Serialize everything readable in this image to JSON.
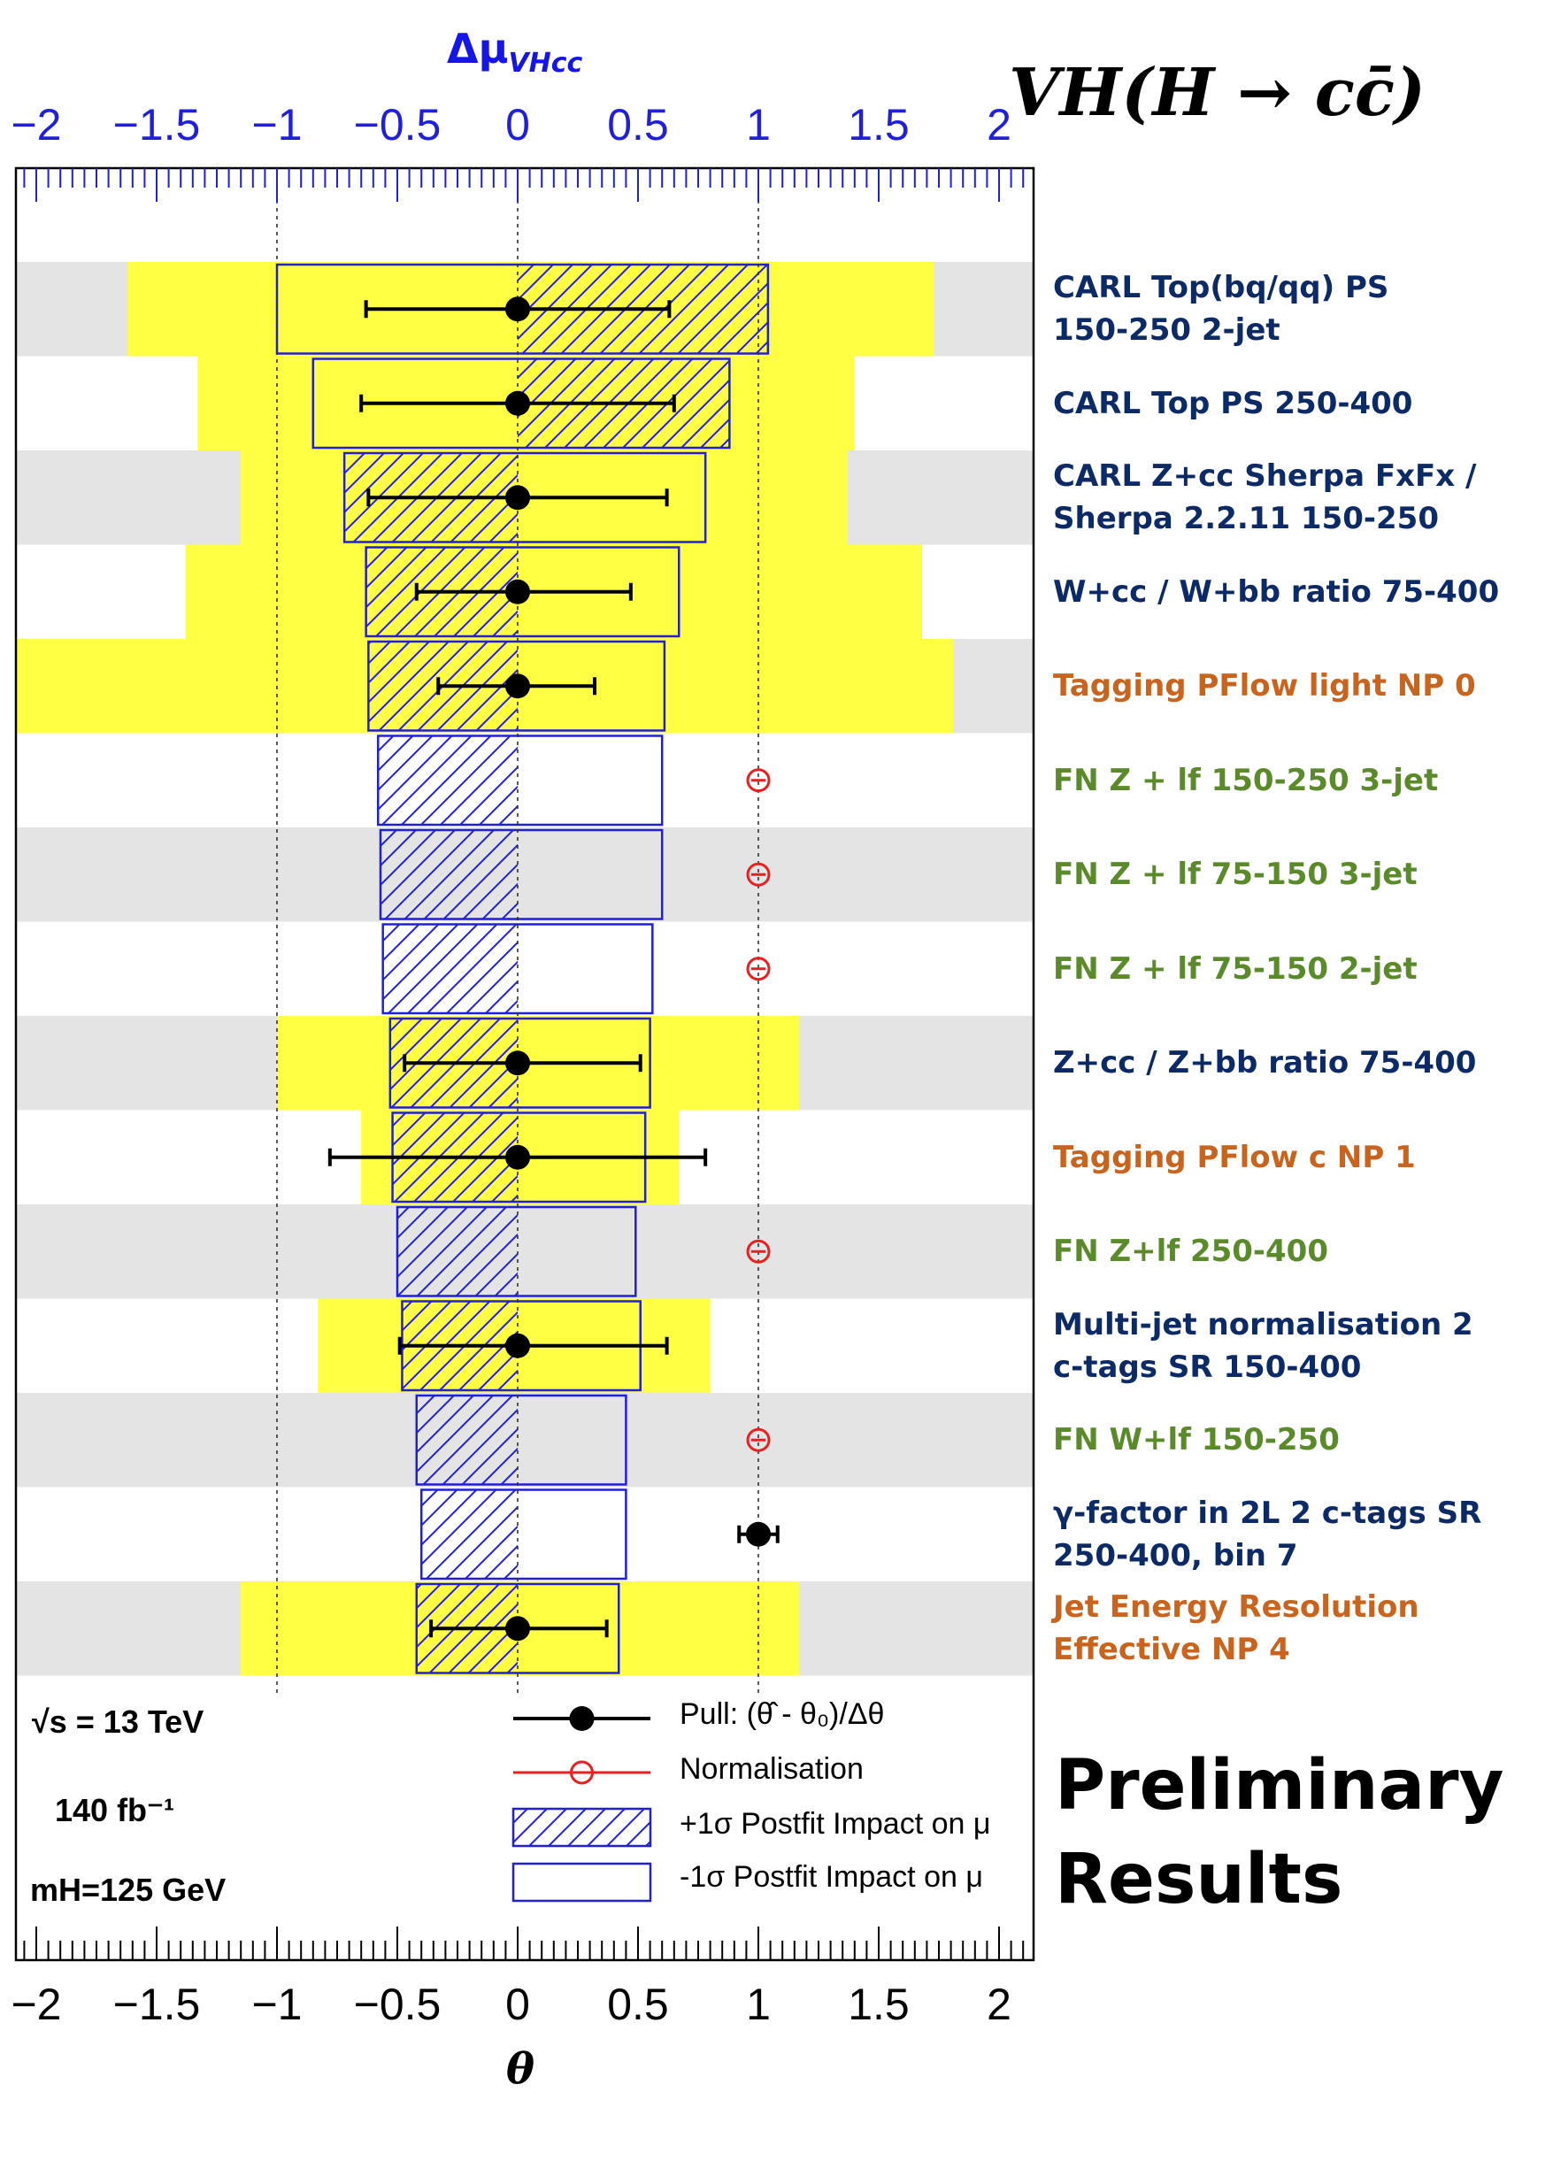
{
  "chart_data": {
    "type": "ranking",
    "title": "VH(H → cc̄)",
    "top_axis": {
      "label": "Δμ_VHcc",
      "range": [
        -2.2,
        2.2
      ],
      "tick_labels": [
        "−2",
        "−1.5",
        "−1",
        "−0.5",
        "0",
        "0.5",
        "1",
        "1.5",
        "2"
      ],
      "color": "#1515e8"
    },
    "bottom_axis": {
      "label": "θ",
      "range": [
        -2.2,
        2.2
      ],
      "tick_labels": [
        "−2",
        "−1.5",
        "−1",
        "−0.5",
        "0",
        "0.5",
        "1",
        "1.5",
        "2"
      ]
    },
    "reference_lines": [
      -1,
      0,
      1
    ],
    "parameters": [
      {
        "label": "CARL Top(bq/qq) PS\n150-250 2-jet",
        "color": "#0c2a66",
        "prefit_band": [
          -1.62,
          1.73
        ],
        "impact_plus": 1.04,
        "impact_minus": -1.0,
        "pull": 0.0,
        "pull_err": [
          -0.63,
          0.63
        ],
        "normalisation": false
      },
      {
        "label": "CARL Top PS 250-400",
        "color": "#0c2a66",
        "prefit_band": [
          -1.33,
          1.4
        ],
        "impact_plus": 0.88,
        "impact_minus": -0.85,
        "pull": 0.0,
        "pull_err": [
          -0.65,
          0.65
        ],
        "normalisation": false
      },
      {
        "label": "CARL Z+cc Sherpa FxFx /\nSherpa 2.2.11 150-250",
        "color": "#0c2a66",
        "prefit_band": [
          -1.15,
          1.37
        ],
        "impact_plus": -0.72,
        "impact_minus": 0.78,
        "pull": 0.0,
        "pull_err": [
          -0.62,
          0.62
        ],
        "normalisation": false
      },
      {
        "label": "W+cc / W+bb ratio 75-400",
        "color": "#0c2a66",
        "prefit_band": [
          -1.38,
          1.68
        ],
        "impact_plus": -0.63,
        "impact_minus": 0.67,
        "pull": 0.0,
        "pull_err": [
          -0.42,
          0.47
        ],
        "normalisation": false
      },
      {
        "label": "Tagging PFlow light NP 0",
        "color": "#c8641e",
        "prefit_band": [
          -2.2,
          1.81
        ],
        "impact_plus": -0.62,
        "impact_minus": 0.61,
        "pull": 0.0,
        "pull_err": [
          -0.33,
          0.32
        ],
        "normalisation": false
      },
      {
        "label": "FN Z + lf 150-250 3-jet",
        "color": "#5a8a2a",
        "prefit_band": null,
        "impact_plus": -0.58,
        "impact_minus": 0.6,
        "pull": 1.0,
        "pull_err": [
          -0.03,
          0.03
        ],
        "normalisation": true
      },
      {
        "label": "FN Z + lf 75-150 3-jet",
        "color": "#5a8a2a",
        "prefit_band": null,
        "impact_plus": -0.57,
        "impact_minus": 0.6,
        "pull": 1.0,
        "pull_err": [
          -0.03,
          0.03
        ],
        "normalisation": true
      },
      {
        "label": "FN Z + lf 75-150 2-jet",
        "color": "#5a8a2a",
        "prefit_band": null,
        "impact_plus": -0.56,
        "impact_minus": 0.56,
        "pull": 1.0,
        "pull_err": [
          -0.03,
          0.03
        ],
        "normalisation": true
      },
      {
        "label": "Z+cc / Z+bb ratio 75-400",
        "color": "#0c2a66",
        "prefit_band": [
          -1.0,
          1.17
        ],
        "impact_plus": -0.53,
        "impact_minus": 0.55,
        "pull": 0.0,
        "pull_err": [
          -0.47,
          0.51
        ],
        "normalisation": false
      },
      {
        "label": "Tagging PFlow c NP 1",
        "color": "#c8641e",
        "prefit_band": [
          -0.65,
          0.67
        ],
        "impact_plus": -0.52,
        "impact_minus": 0.53,
        "pull": 0.0,
        "pull_err": [
          -0.78,
          0.78
        ],
        "normalisation": false
      },
      {
        "label": "FN Z+lf 250-400",
        "color": "#5a8a2a",
        "prefit_band": null,
        "impact_plus": -0.5,
        "impact_minus": 0.49,
        "pull": 1.0,
        "pull_err": [
          -0.03,
          0.03
        ],
        "normalisation": true
      },
      {
        "label": "Multi-jet normalisation 2\nc-tags SR 150-400",
        "color": "#0c2a66",
        "prefit_band": [
          -0.83,
          0.8
        ],
        "impact_plus": -0.48,
        "impact_minus": 0.51,
        "pull": 0.0,
        "pull_err": [
          -0.49,
          0.62
        ],
        "normalisation": false
      },
      {
        "label": "FN W+lf 150-250",
        "color": "#5a8a2a",
        "prefit_band": null,
        "impact_plus": -0.42,
        "impact_minus": 0.45,
        "pull": 1.0,
        "pull_err": [
          -0.03,
          0.03
        ],
        "normalisation": true
      },
      {
        "label": "γ-factor in 2L 2 c-tags SR\n250-400, bin 7",
        "color": "#0c2a66",
        "prefit_band": null,
        "impact_plus": -0.4,
        "impact_minus": 0.45,
        "pull": 1.0,
        "pull_err": [
          -0.08,
          0.08
        ],
        "normalisation": false
      },
      {
        "label": "Jet Energy Resolution\nEffective NP 4",
        "color": "#c8641e",
        "prefit_band": [
          -1.15,
          1.17
        ],
        "impact_plus": -0.42,
        "impact_minus": 0.42,
        "pull": 0.0,
        "pull_err": [
          -0.36,
          0.37
        ],
        "normalisation": false
      }
    ],
    "legend": [
      {
        "key": "pull",
        "text": "Pull: (θ̂ - θ₀)/Δθ"
      },
      {
        "key": "norm",
        "text": "Normalisation"
      },
      {
        "key": "plus",
        "text": "+1σ Postfit Impact on μ"
      },
      {
        "key": "minus",
        "text": "-1σ Postfit Impact on μ"
      }
    ],
    "info": {
      "energy": "√s = 13 TeV",
      "lumi": "140  fb⁻¹",
      "mass": "mH=125 GeV"
    },
    "colors": {
      "impact": "#2020d8",
      "band": "#ffff44",
      "stripe": "#e4e4e4",
      "norm": "#e82020",
      "pull": "#000000"
    }
  },
  "annotations": {
    "title": "VH(H → cc̄)",
    "top_axis_title": "Δμ",
    "top_axis_subscript": "VHcc",
    "bottom_axis_title": "θ",
    "preliminary": "Preliminary\nResults"
  }
}
